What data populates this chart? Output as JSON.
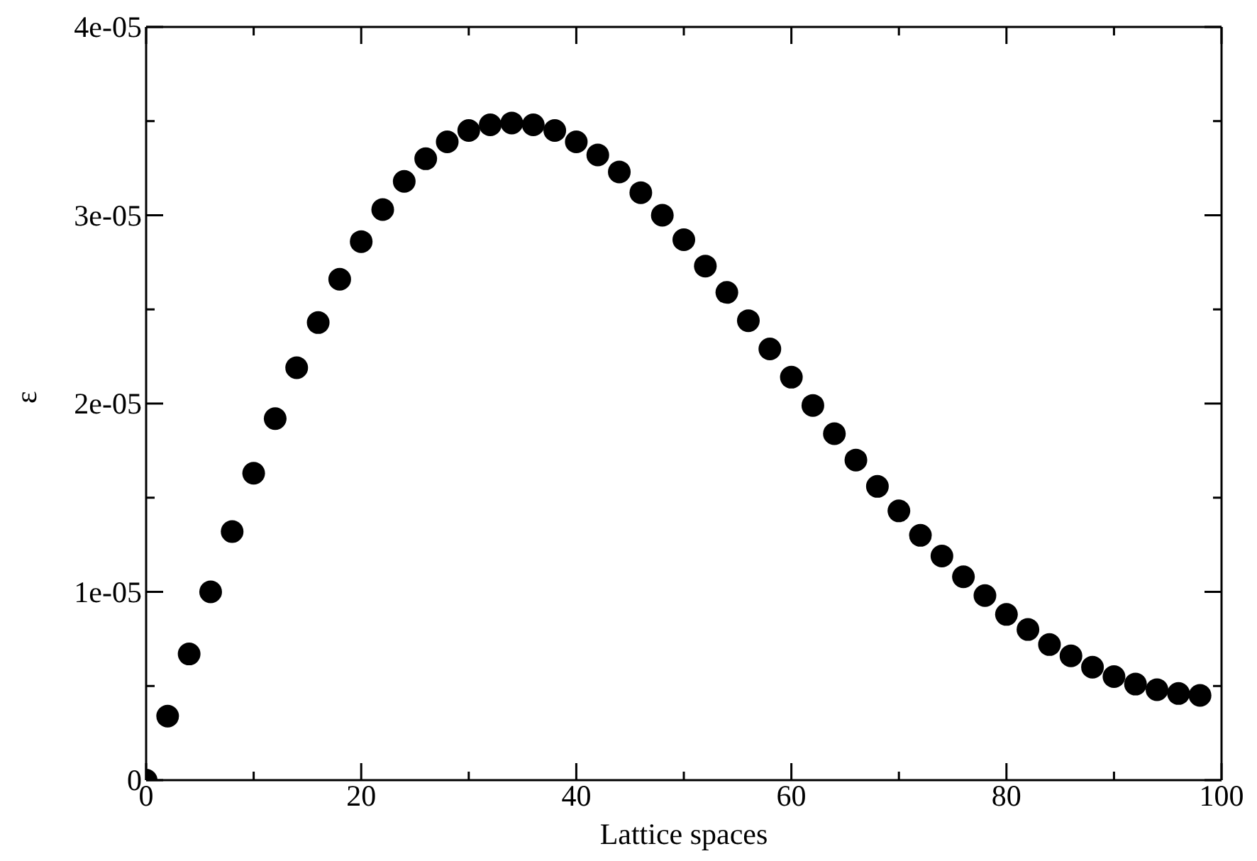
{
  "chart_data": {
    "type": "scatter",
    "xlabel": "Lattice spaces",
    "ylabel": "ε",
    "x": [
      0,
      2,
      4,
      6,
      8,
      10,
      12,
      14,
      16,
      18,
      20,
      22,
      24,
      26,
      28,
      30,
      32,
      34,
      36,
      38,
      40,
      42,
      44,
      46,
      48,
      50,
      52,
      54,
      56,
      58,
      60,
      62,
      64,
      66,
      68,
      70,
      72,
      74,
      76,
      78,
      80,
      82,
      84,
      86,
      88,
      90,
      92,
      94,
      96,
      98
    ],
    "series": [
      {
        "color": "#000000",
        "values": [
          0,
          3.4e-06,
          6.7e-06,
          1e-05,
          1.32e-05,
          1.63e-05,
          1.92e-05,
          2.19e-05,
          2.43e-05,
          2.66e-05,
          2.86e-05,
          3.03e-05,
          3.18e-05,
          3.3e-05,
          3.39e-05,
          3.45e-05,
          3.48e-05,
          3.49e-05,
          3.48e-05,
          3.45e-05,
          3.39e-05,
          3.32e-05,
          3.23e-05,
          3.12e-05,
          3e-05,
          2.87e-05,
          2.73e-05,
          2.59e-05,
          2.44e-05,
          2.29e-05,
          2.14e-05,
          1.99e-05,
          1.84e-05,
          1.7e-05,
          1.56e-05,
          1.43e-05,
          1.3e-05,
          1.19e-05,
          1.08e-05,
          9.8e-06,
          8.8e-06,
          8e-06,
          7.2e-06,
          6.6e-06,
          6e-06,
          5.5e-06,
          5.1e-06,
          4.8e-06,
          4.6e-06,
          4.5e-06
        ]
      }
    ],
    "xlim": [
      0,
      100
    ],
    "xticks": [
      0,
      {
        "value": 10,
        "label": null
      },
      20,
      {
        "value": 30,
        "label": null
      },
      40,
      {
        "value": 50,
        "label": null
      },
      60,
      {
        "value": 70,
        "label": null
      },
      80,
      {
        "value": 90,
        "label": null
      },
      100
    ],
    "ylim": [
      0,
      4e-05
    ],
    "yticks": [
      0,
      {
        "value": 5e-06,
        "label": null
      },
      {
        "value": 1e-05,
        "label": "1e-05"
      },
      {
        "value": 1.5e-05,
        "label": null
      },
      {
        "value": 2e-05,
        "label": "2e-05"
      },
      {
        "value": 2.5e-05,
        "label": null
      },
      {
        "value": 3e-05,
        "label": "3e-05"
      },
      {
        "value": 3.5e-05,
        "label": null
      },
      {
        "value": 4e-05,
        "label": "4e-05"
      }
    ],
    "marker": "circle"
  }
}
